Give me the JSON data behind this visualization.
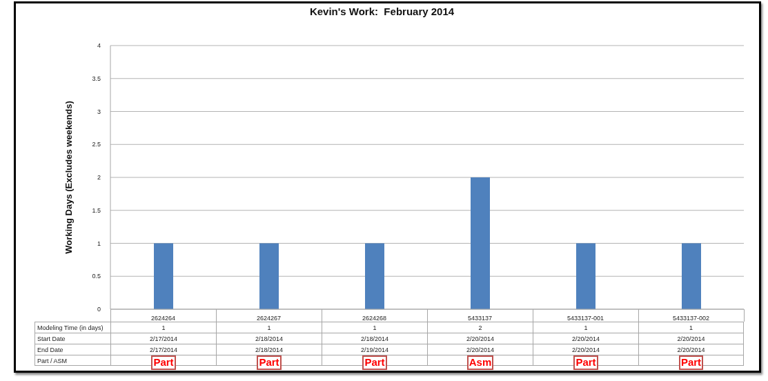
{
  "chart_data": {
    "type": "bar",
    "title": "Kevin's Work:  February 2014",
    "ylabel": "Working Days (Excludes weekends)",
    "categories": [
      "2624264",
      "2624267",
      "2624268",
      "5433137",
      "5433137-001",
      "5433137-002"
    ],
    "values": [
      1,
      1,
      1,
      2,
      1,
      1
    ],
    "color": "#4f81bd",
    "ylim": [
      0,
      4
    ],
    "yticks": [
      0,
      0.5,
      1,
      1.5,
      2,
      2.5,
      3,
      3.5,
      4
    ],
    "grid": "y",
    "data_labels": true,
    "annotations": [
      "Modeling Time (in days)",
      "Start Date",
      "2/17/2014",
      "2/18/2014",
      "2/18/2014",
      "2/20/2014",
      "2/20/2014",
      "2/20/2014",
      "End Date",
      "2/17/2014",
      "2/18/2014",
      "2/19/2014",
      "2/20/2014",
      "2/20/2014",
      "2/20/2014",
      "Part / ASM",
      "Part",
      "Part",
      "Part",
      "Asm",
      "Part",
      "Part"
    ]
  }
}
